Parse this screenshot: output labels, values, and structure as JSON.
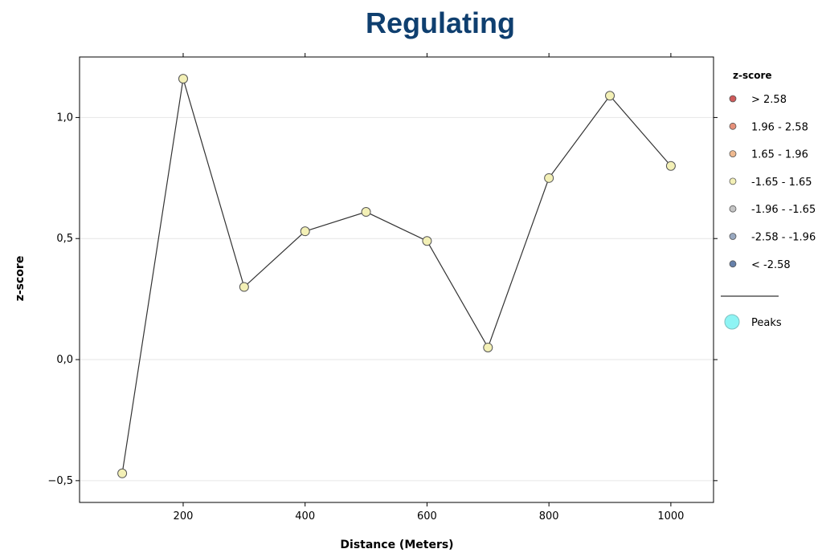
{
  "chart_data": {
    "type": "scatter",
    "title": "Regulating",
    "xlabel": "Distance (Meters)",
    "ylabel": "z-score",
    "xlim": [
      30,
      1070
    ],
    "ylim": [
      -0.59,
      1.25
    ],
    "x_ticks": [
      200,
      400,
      600,
      800,
      1000
    ],
    "y_ticks": [
      -0.5,
      0.0,
      0.5,
      1.0
    ],
    "y_tick_labels": [
      "−0,5",
      "0,0",
      "0,5",
      "1,0"
    ],
    "grid": true,
    "legend_position": "right",
    "line_color": "#333333",
    "series": [
      {
        "x": [
          100,
          200,
          300,
          400,
          500,
          600,
          700,
          800,
          900,
          1000
        ],
        "y": [
          -0.47,
          1.16,
          0.3,
          0.53,
          0.61,
          0.49,
          0.05,
          0.75,
          1.09,
          0.8
        ],
        "point_color": "#f3f0b6"
      }
    ],
    "legend": {
      "title": "z-score",
      "items": [
        {
          "label": "> 2.58",
          "color": "#cf5a5a"
        },
        {
          "label": "1.96 - 2.58",
          "color": "#e6907a"
        },
        {
          "label": "1.65 - 1.96",
          "color": "#efb98f"
        },
        {
          "label": "-1.65 - 1.65",
          "color": "#f3f0b6"
        },
        {
          "label": "-1.96 - -1.65",
          "color": "#c4c4c4"
        },
        {
          "label": "-2.58 - -1.96",
          "color": "#98a8c0"
        },
        {
          "label": "< -2.58",
          "color": "#6680aa"
        }
      ],
      "peaks_label": "Peaks",
      "peaks_color": "#8ef4f4"
    }
  }
}
